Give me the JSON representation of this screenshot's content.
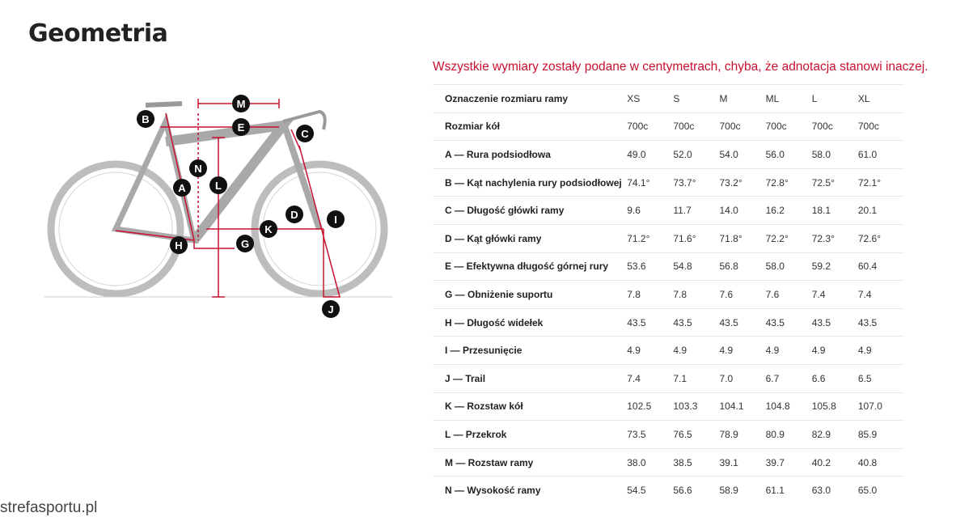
{
  "title": "Geometria",
  "note": "Wszystkie wymiary zostały podane w centymetrach, chyba, że adnotacja stanowi inaczej.",
  "watermark": "strefasportu.pl",
  "accent_color": "#c8102e",
  "diagram": {
    "labels": [
      "M",
      "B",
      "E",
      "C",
      "N",
      "A",
      "L",
      "D",
      "I",
      "K",
      "H",
      "G",
      "J"
    ]
  },
  "table": {
    "rows": [
      {
        "label": "Oznaczenie rozmiaru ramy",
        "values": [
          "XS",
          "S",
          "M",
          "ML",
          "L",
          "XL"
        ]
      },
      {
        "label": "Rozmiar kół",
        "values": [
          "700c",
          "700c",
          "700c",
          "700c",
          "700c",
          "700c"
        ]
      },
      {
        "label": "A — Rura podsiodłowa",
        "values": [
          "49.0",
          "52.0",
          "54.0",
          "56.0",
          "58.0",
          "61.0"
        ]
      },
      {
        "label": "B — Kąt nachylenia rury podsiodłowej",
        "values": [
          "74.1°",
          "73.7°",
          "73.2°",
          "72.8°",
          "72.5°",
          "72.1°"
        ]
      },
      {
        "label": "C — Długość główki ramy",
        "values": [
          "9.6",
          "11.7",
          "14.0",
          "16.2",
          "18.1",
          "20.1"
        ]
      },
      {
        "label": "D — Kąt główki ramy",
        "values": [
          "71.2°",
          "71.6°",
          "71.8°",
          "72.2°",
          "72.3°",
          "72.6°"
        ]
      },
      {
        "label": "E — Efektywna długość górnej rury",
        "values": [
          "53.6",
          "54.8",
          "56.8",
          "58.0",
          "59.2",
          "60.4"
        ]
      },
      {
        "label": "G — Obniżenie suportu",
        "values": [
          "7.8",
          "7.8",
          "7.6",
          "7.6",
          "7.4",
          "7.4"
        ]
      },
      {
        "label": "H — Długość widełek",
        "values": [
          "43.5",
          "43.5",
          "43.5",
          "43.5",
          "43.5",
          "43.5"
        ]
      },
      {
        "label": "I — Przesunięcie",
        "values": [
          "4.9",
          "4.9",
          "4.9",
          "4.9",
          "4.9",
          "4.9"
        ]
      },
      {
        "label": "J — Trail",
        "values": [
          "7.4",
          "7.1",
          "7.0",
          "6.7",
          "6.6",
          "6.5"
        ]
      },
      {
        "label": "K — Rozstaw kół",
        "values": [
          "102.5",
          "103.3",
          "104.1",
          "104.8",
          "105.8",
          "107.0"
        ]
      },
      {
        "label": "L — Przekrok",
        "values": [
          "73.5",
          "76.5",
          "78.9",
          "80.9",
          "82.9",
          "85.9"
        ]
      },
      {
        "label": "M — Rozstaw ramy",
        "values": [
          "38.0",
          "38.5",
          "39.1",
          "39.7",
          "40.2",
          "40.8"
        ]
      },
      {
        "label": "N — Wysokość ramy",
        "values": [
          "54.5",
          "56.6",
          "58.9",
          "61.1",
          "63.0",
          "65.0"
        ]
      }
    ]
  }
}
